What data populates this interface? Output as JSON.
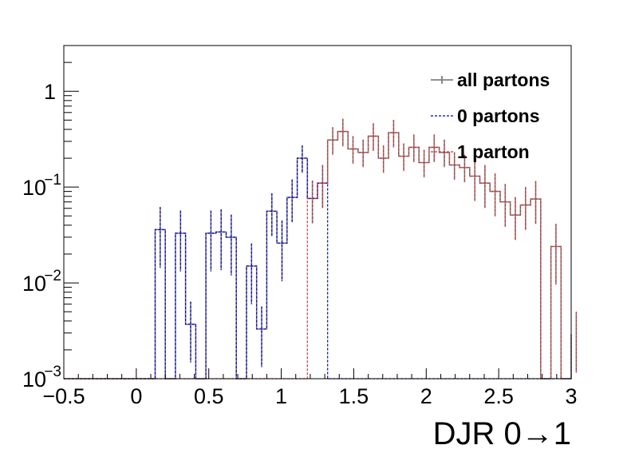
{
  "chart_data": {
    "type": "line",
    "step": true,
    "xlabel": "DJR 0→1",
    "ylabel": "",
    "title": "",
    "xlim": [
      -0.5,
      3
    ],
    "ylim": [
      0.001,
      3
    ],
    "log_y": true,
    "x_ticks": [
      {
        "value": -0.5,
        "label": "−0.5"
      },
      {
        "value": 0,
        "label": "0"
      },
      {
        "value": 0.5,
        "label": "0.5"
      },
      {
        "value": 1,
        "label": "1"
      },
      {
        "value": 1.5,
        "label": "1.5"
      },
      {
        "value": 2,
        "label": "2"
      },
      {
        "value": 2.5,
        "label": "2.5"
      },
      {
        "value": 3,
        "label": "3"
      }
    ],
    "y_ticks": [
      {
        "value": 0.001,
        "base": "10",
        "exp": "−3"
      },
      {
        "value": 0.01,
        "base": "10",
        "exp": "−2"
      },
      {
        "value": 0.1,
        "base": "10",
        "exp": "−1"
      },
      {
        "value": 1,
        "base": "1",
        "exp": ""
      }
    ],
    "bin_width": 0.07,
    "bin_start": -0.5,
    "legend_position": "top-right",
    "grid": false,
    "series": [
      {
        "name": "all partons",
        "color": "#808080",
        "dash": "",
        "values": [
          0,
          0,
          0,
          0,
          0,
          0,
          0,
          0,
          0,
          0.036,
          0,
          0.033,
          0.0037,
          0,
          0.033,
          0.034,
          0.03,
          0.001,
          0.015,
          0.0033,
          0.056,
          0.026,
          0.078,
          0.2,
          0.076,
          0.11,
          0.31,
          0.38,
          0.25,
          0.23,
          0.34,
          0.2,
          0.37,
          0.21,
          0.26,
          0.18,
          0.26,
          0.23,
          0.17,
          0.16,
          0.13,
          0.11,
          0.09,
          0.07,
          0.051,
          0.065,
          0.075,
          0.001,
          0.024,
          0.001,
          0.0029
        ]
      },
      {
        "name": "0 partons",
        "color": "#0000cc",
        "dash": "3,2",
        "values": [
          0,
          0,
          0,
          0,
          0,
          0,
          0,
          0,
          0,
          0.036,
          0,
          0.033,
          0.0037,
          0,
          0.033,
          0.034,
          0.03,
          0.001,
          0.015,
          0.0033,
          0.056,
          0.026,
          0.078,
          0.2,
          0.076,
          0.11,
          0,
          0,
          0,
          0,
          0,
          0,
          0,
          0,
          0,
          0,
          0,
          0,
          0,
          0,
          0,
          0,
          0,
          0,
          0,
          0,
          0,
          0,
          0,
          0,
          0
        ]
      },
      {
        "name": "1 parton",
        "color": "#cc3333",
        "dash": "3,2",
        "values": [
          0,
          0,
          0,
          0,
          0,
          0,
          0,
          0,
          0,
          0,
          0,
          0,
          0,
          0,
          0,
          0,
          0,
          0,
          0,
          0,
          0,
          0,
          0,
          0,
          0.076,
          0.11,
          0.31,
          0.38,
          0.25,
          0.23,
          0.34,
          0.2,
          0.37,
          0.21,
          0.26,
          0.18,
          0.26,
          0.23,
          0.17,
          0.16,
          0.13,
          0.11,
          0.09,
          0.07,
          0.051,
          0.065,
          0.075,
          0.001,
          0.024,
          0.001,
          0.0029
        ]
      }
    ]
  }
}
